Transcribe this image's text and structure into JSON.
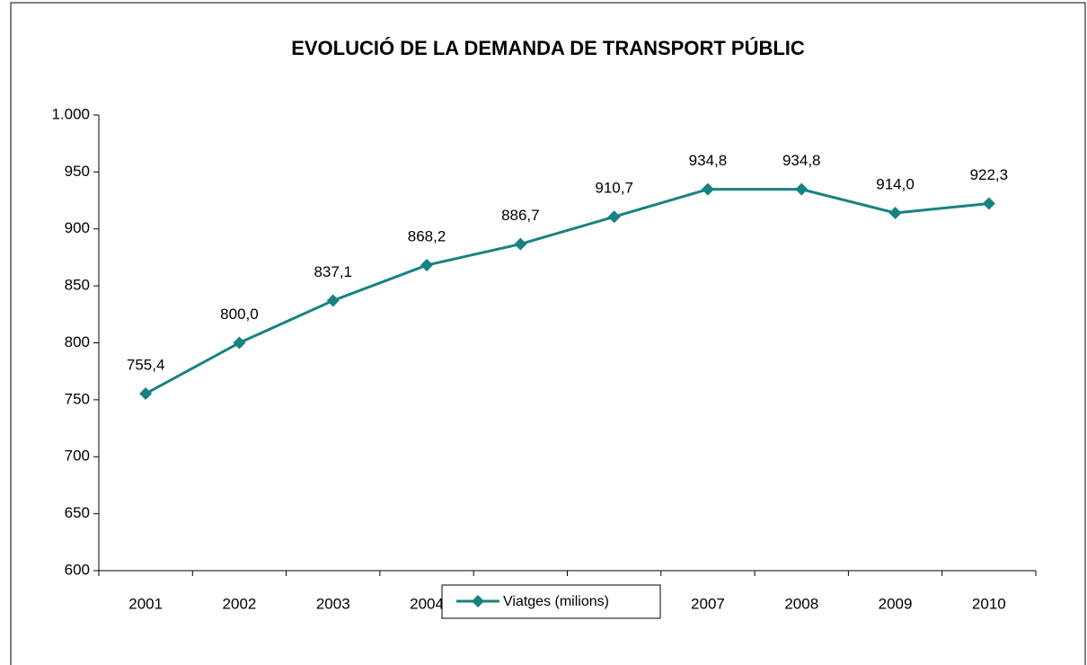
{
  "chart_data": {
    "type": "line",
    "title": "EVOLUCIÓ DE LA DEMANDA DE TRANSPORT PÚBLIC",
    "categories": [
      "2001",
      "2002",
      "2003",
      "2004",
      "2005",
      "2006",
      "2007",
      "2008",
      "2009",
      "2010"
    ],
    "series": [
      {
        "name": "Viatges (milions)",
        "color": "#178282",
        "values": [
          755.4,
          800.0,
          837.1,
          868.2,
          886.7,
          910.7,
          934.8,
          934.8,
          914.0,
          922.3
        ],
        "value_labels": [
          "755,4",
          "800,0",
          "837,1",
          "868,2",
          "886,7",
          "910,7",
          "934,8",
          "934,8",
          "914,0",
          "922,3"
        ]
      }
    ],
    "ylim": [
      600,
      1000
    ],
    "yticks": [
      600,
      650,
      700,
      750,
      800,
      850,
      900,
      950,
      {
        "value": 1000,
        "label": "1.000"
      }
    ]
  }
}
